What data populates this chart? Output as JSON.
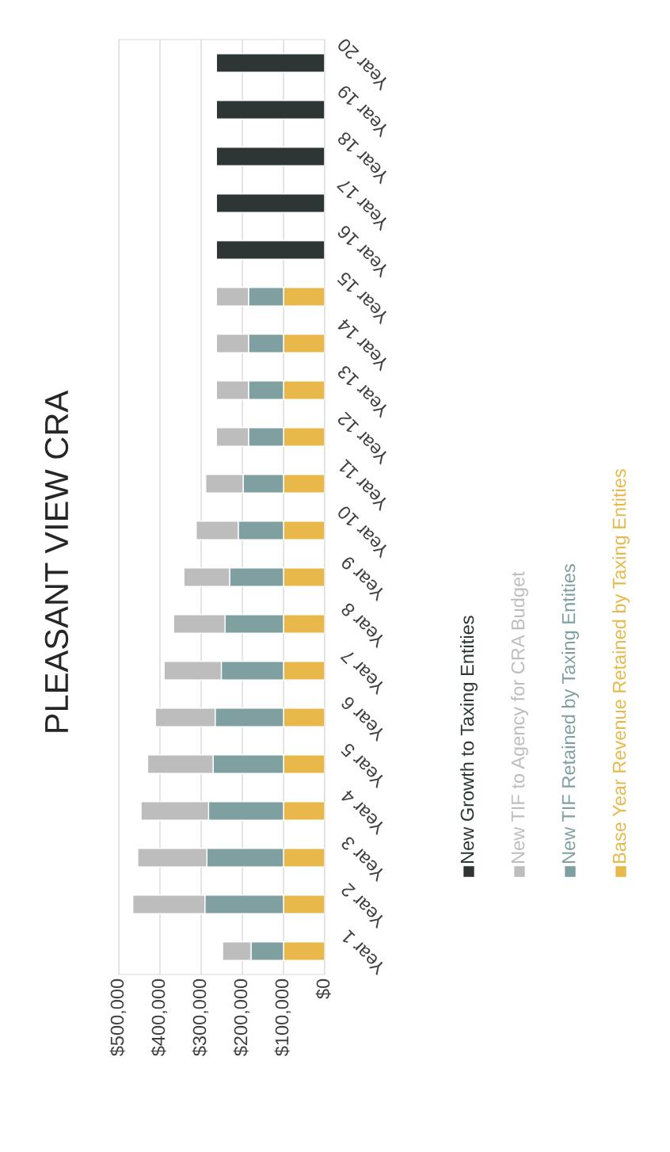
{
  "chart_data": {
    "type": "bar",
    "orientation": "horizontal",
    "stacked": true,
    "title": "PLEASANT VIEW CRA",
    "categories": [
      "Year 20",
      "Year 19",
      "Year 18",
      "Year 17",
      "Year 16",
      "Year 15",
      "Year 14",
      "Year 13",
      "Year 12",
      "Year 11",
      "Year 10",
      "Year 9",
      "Year 8",
      "Year 7",
      "Year 6",
      "Year 5",
      "Year 4",
      "Year 3",
      "Year 2",
      "Year 1"
    ],
    "series": [
      {
        "name": "Base Year Revenue Retained by Taxing Entities",
        "color": "#e8b84a",
        "values": [
          null,
          null,
          null,
          null,
          null,
          100000,
          100000,
          100000,
          100000,
          100000,
          100000,
          100000,
          100000,
          100000,
          100000,
          100000,
          100000,
          100000,
          100000,
          100000
        ]
      },
      {
        "name": "New TIF Retained by Taxing Entities",
        "color": "#7f9fa1",
        "values": [
          null,
          null,
          null,
          null,
          null,
          85000,
          85000,
          85000,
          85000,
          98000,
          110000,
          131000,
          142000,
          151000,
          166000,
          171000,
          182000,
          186000,
          191000,
          79000
        ]
      },
      {
        "name": "New TIF to Agency for CRA Budget",
        "color": "#bdbdbd",
        "values": [
          null,
          null,
          null,
          null,
          null,
          78000,
          78000,
          78000,
          78000,
          91000,
          102000,
          111000,
          125000,
          139000,
          145000,
          159000,
          164000,
          168000,
          175000,
          69000
        ]
      },
      {
        "name": "New Growth to Taxing Entities",
        "color": "#2e3535",
        "values": [
          263000,
          263000,
          263000,
          263000,
          263000,
          null,
          null,
          null,
          null,
          null,
          null,
          null,
          null,
          null,
          null,
          null,
          null,
          null,
          null,
          null
        ]
      }
    ],
    "xlim": [
      500000,
      0
    ],
    "xticks": [
      {
        "value": 0,
        "label": "$0"
      },
      {
        "value": 100000,
        "label": "$100,000"
      },
      {
        "value": 200000,
        "label": "$200,000"
      },
      {
        "value": 300000,
        "label": "$300,000"
      },
      {
        "value": 400000,
        "label": "$400,000"
      },
      {
        "value": 500000,
        "label": "$500,000"
      }
    ],
    "grid": "x",
    "legend": "right"
  }
}
